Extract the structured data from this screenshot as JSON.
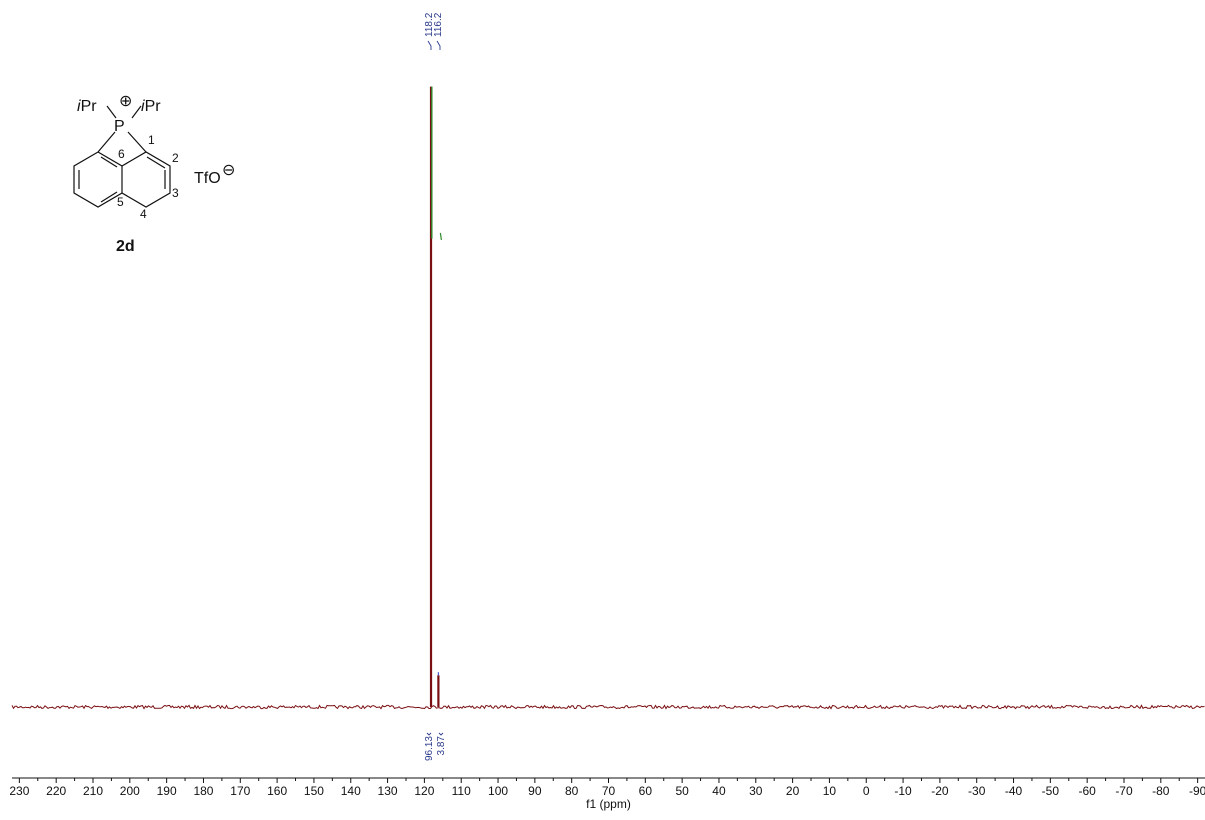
{
  "chart_data": {
    "type": "line",
    "title": "",
    "xlabel": "f1 (ppm)",
    "ylabel": "",
    "x_reversed": true,
    "xlim": [
      232,
      -92
    ],
    "ylim": [
      -0.02,
      1.0
    ],
    "x_ticks": [
      230,
      220,
      210,
      200,
      190,
      180,
      170,
      160,
      150,
      140,
      130,
      120,
      110,
      100,
      90,
      80,
      70,
      60,
      50,
      40,
      30,
      20,
      10,
      0,
      -10,
      -20,
      -30,
      -40,
      -50,
      -60,
      -70,
      -80,
      -90
    ],
    "x_tick_labels": [
      "230",
      "220",
      "210",
      "200",
      "190",
      "180",
      "170",
      "160",
      "150",
      "140",
      "130",
      "120",
      "110",
      "100",
      "90",
      "80",
      "70",
      "60",
      "50",
      "40",
      "30",
      "20",
      "10",
      "0",
      "-10",
      "-20",
      "-30",
      "-40",
      "-50",
      "-60",
      "-70",
      "-80",
      "-90"
    ],
    "peaks": [
      {
        "ppm": 118.2,
        "label": "118.2",
        "height": 0.98
      },
      {
        "ppm": 116.2,
        "label": "116.2",
        "height": 0.05
      }
    ],
    "integrals": [
      {
        "ppm": 118.2,
        "label": "96.13"
      },
      {
        "ppm": 116.2,
        "label": "3.87"
      }
    ],
    "integral_curve_color": "#2e8b2e",
    "spectrum_color": "#7a0f12",
    "grid": false
  },
  "structure": {
    "compound_label": "2d",
    "substituent_left": "iPr",
    "substituent_right": "iPr",
    "heteroatom": "P",
    "counterion": "TfO",
    "cation_charge": "⊕",
    "anion_charge": "⊖",
    "atom_numbers": [
      "1",
      "2",
      "3",
      "4",
      "5",
      "6"
    ]
  }
}
